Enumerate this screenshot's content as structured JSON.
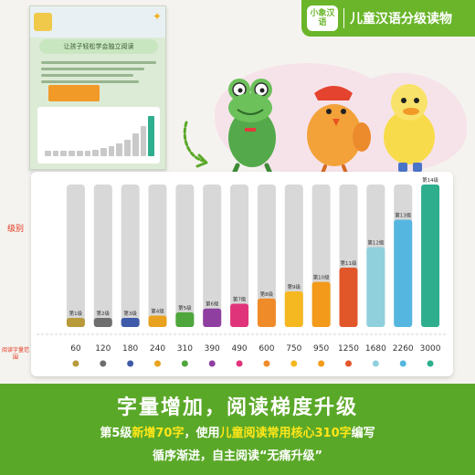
{
  "brand": {
    "logo_text": "小象汉语",
    "title": "儿童汉语分级读物",
    "color": "#6ab52a"
  },
  "thumbnail": {
    "heading": "让孩子轻松学会独立阅读"
  },
  "chart_data": {
    "type": "bar",
    "ylabel": "级别",
    "xlabel": "阅读字量范围",
    "categories": [
      "第1级",
      "第2级",
      "第3级",
      "第4级",
      "第5级",
      "第6级",
      "第7级",
      "第8级",
      "第9级",
      "第10级",
      "第11级",
      "第12级",
      "第13级",
      "第14级"
    ],
    "values": [
      60,
      120,
      180,
      240,
      310,
      390,
      490,
      600,
      750,
      950,
      1250,
      1680,
      2260,
      3000
    ],
    "value_labels": [
      "60",
      "120",
      "180",
      "240",
      "310",
      "390",
      "490",
      "600",
      "750",
      "950",
      "1250",
      "1680",
      "2260",
      "3000"
    ],
    "colors": [
      "#b89a3a",
      "#6e6e6e",
      "#3e5aa8",
      "#e8a21f",
      "#4fa63c",
      "#8e3fa0",
      "#e0347a",
      "#f08b2a",
      "#f6b820",
      "#f39a1a",
      "#e2572a",
      "#8fd0dc",
      "#55b6e0",
      "#2fae8e"
    ],
    "ylim": [
      0,
      3000
    ]
  },
  "captions": {
    "main": "字量增加，阅读梯度升级",
    "line2_a": "第5级",
    "line2_b": "新增70字",
    "line2_c": "，使用",
    "line2_d": "儿童阅读常用核心310字",
    "line2_e": "编写",
    "line3": "循序渐进，自主阅读“无痛升级”"
  }
}
